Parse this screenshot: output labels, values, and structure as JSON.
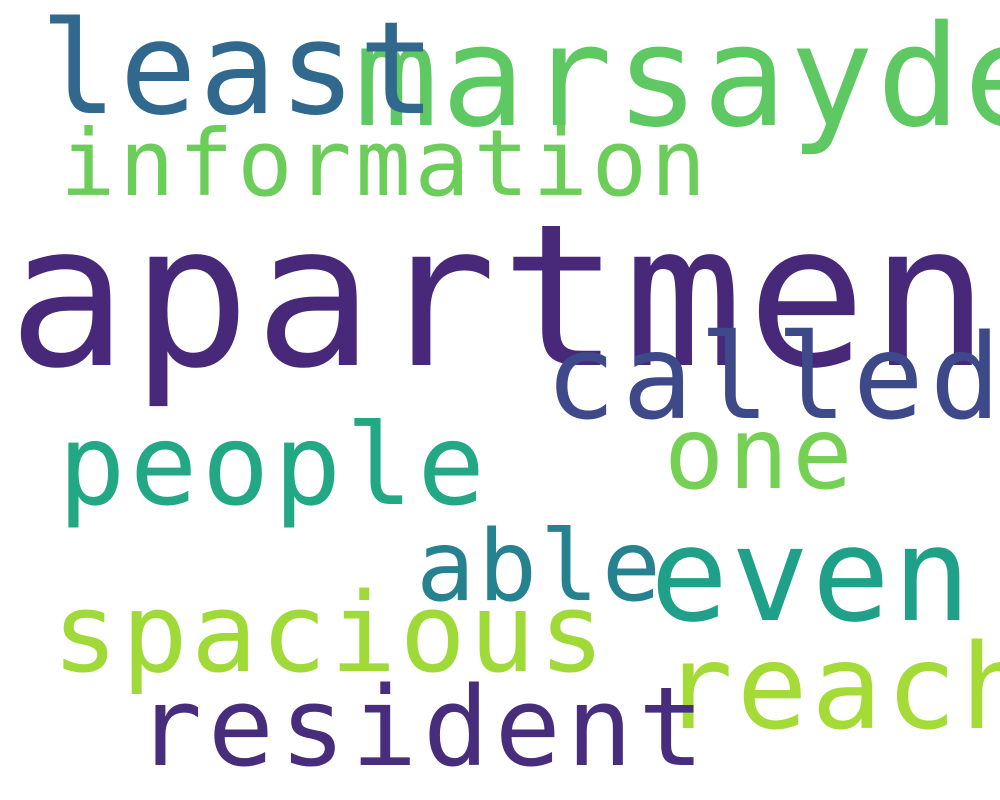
{
  "words": {
    "apartment": {
      "text": "apartment",
      "color": "#482878"
    },
    "marsayde": {
      "text": "marsayde",
      "color": "#5ec962"
    },
    "least": {
      "text": "least",
      "color": "#31688e"
    },
    "information": {
      "text": "information",
      "color": "#6ccd5a"
    },
    "called": {
      "text": "called",
      "color": "#3e4989"
    },
    "people": {
      "text": "people",
      "color": "#22a884"
    },
    "one": {
      "text": "one",
      "color": "#75d054"
    },
    "able": {
      "text": "able",
      "color": "#26828e"
    },
    "even": {
      "text": "even",
      "color": "#1fa088"
    },
    "spacious": {
      "text": "spacious",
      "color": "#a0da39"
    },
    "reach": {
      "text": "reach",
      "color": "#a5db36"
    },
    "resident": {
      "text": "resident",
      "color": "#472d7b"
    }
  }
}
